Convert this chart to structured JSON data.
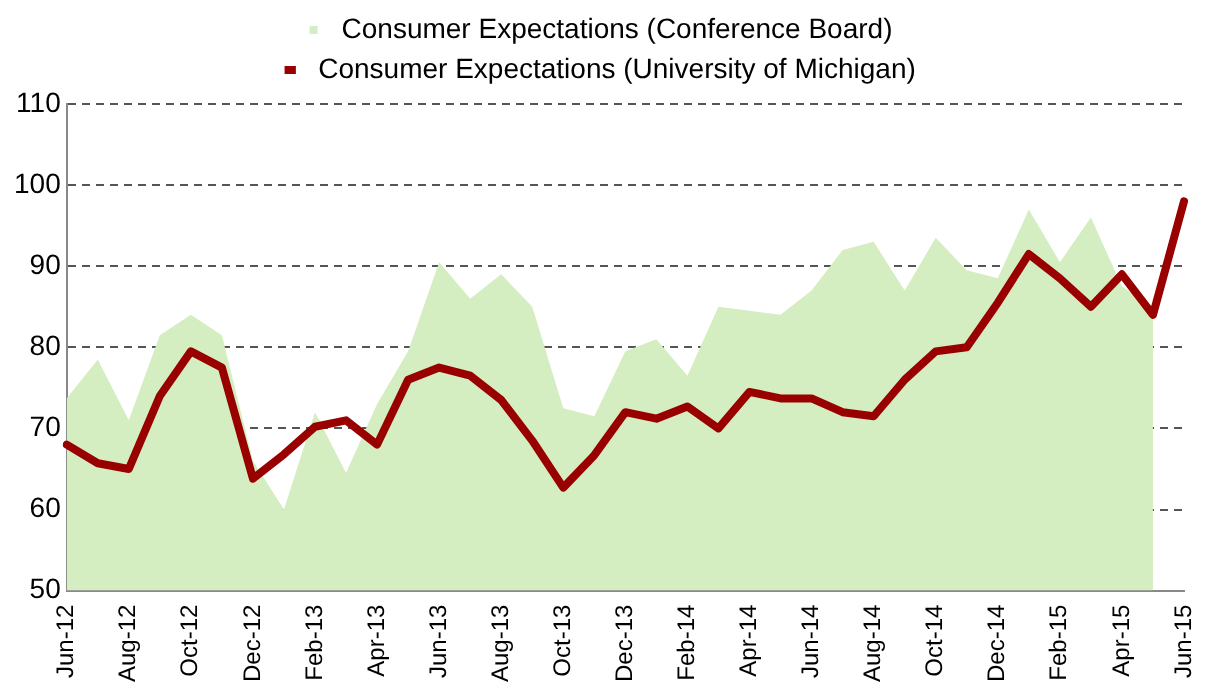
{
  "chart_data": {
    "type": "line",
    "categories": [
      "Jun-12",
      null,
      "Aug-12",
      null,
      "Oct-12",
      null,
      "Dec-12",
      null,
      "Feb-13",
      null,
      "Apr-13",
      null,
      "Jun-13",
      null,
      "Aug-13",
      null,
      "Oct-13",
      null,
      "Dec-13",
      null,
      "Feb-14",
      null,
      "Apr-14",
      null,
      "Jun-14",
      null,
      "Aug-14",
      null,
      "Oct-14",
      null,
      "Dec-14",
      null,
      "Feb-15",
      null,
      "Apr-15",
      null,
      "Jun-15"
    ],
    "series": [
      {
        "name": "Consumer Expectations (Conference Board)",
        "type": "area",
        "color": "#d4edc1",
        "values": [
          73.7,
          78.5,
          71,
          81.5,
          84,
          81.5,
          66,
          60,
          72,
          64.5,
          73,
          79.5,
          90.5,
          86,
          89,
          85,
          72.5,
          71.5,
          79.5,
          81,
          76.5,
          85,
          84.5,
          84,
          87,
          92,
          93,
          87,
          93.5,
          89.5,
          88.5,
          97,
          90.5,
          96,
          87.5,
          85,
          null
        ]
      },
      {
        "name": "Consumer Expectations (University of Michigan)",
        "color": "#990000",
        "values": [
          68,
          65.7,
          65,
          74,
          79.5,
          77.5,
          63.8,
          66.8,
          70.2,
          71,
          68,
          76,
          77.5,
          76.5,
          73.5,
          68.5,
          62.7,
          66.7,
          72,
          71.2,
          72.7,
          70,
          74.5,
          73.7,
          73.7,
          72,
          71.5,
          76,
          79.5,
          80,
          85.5,
          91.5,
          88.5,
          85,
          89,
          84,
          98
        ]
      }
    ],
    "ylim": [
      50,
      110
    ],
    "yticks": [
      50,
      60,
      70,
      80,
      90,
      100,
      110
    ],
    "grid": "y",
    "legend": "top",
    "marker": "none"
  }
}
